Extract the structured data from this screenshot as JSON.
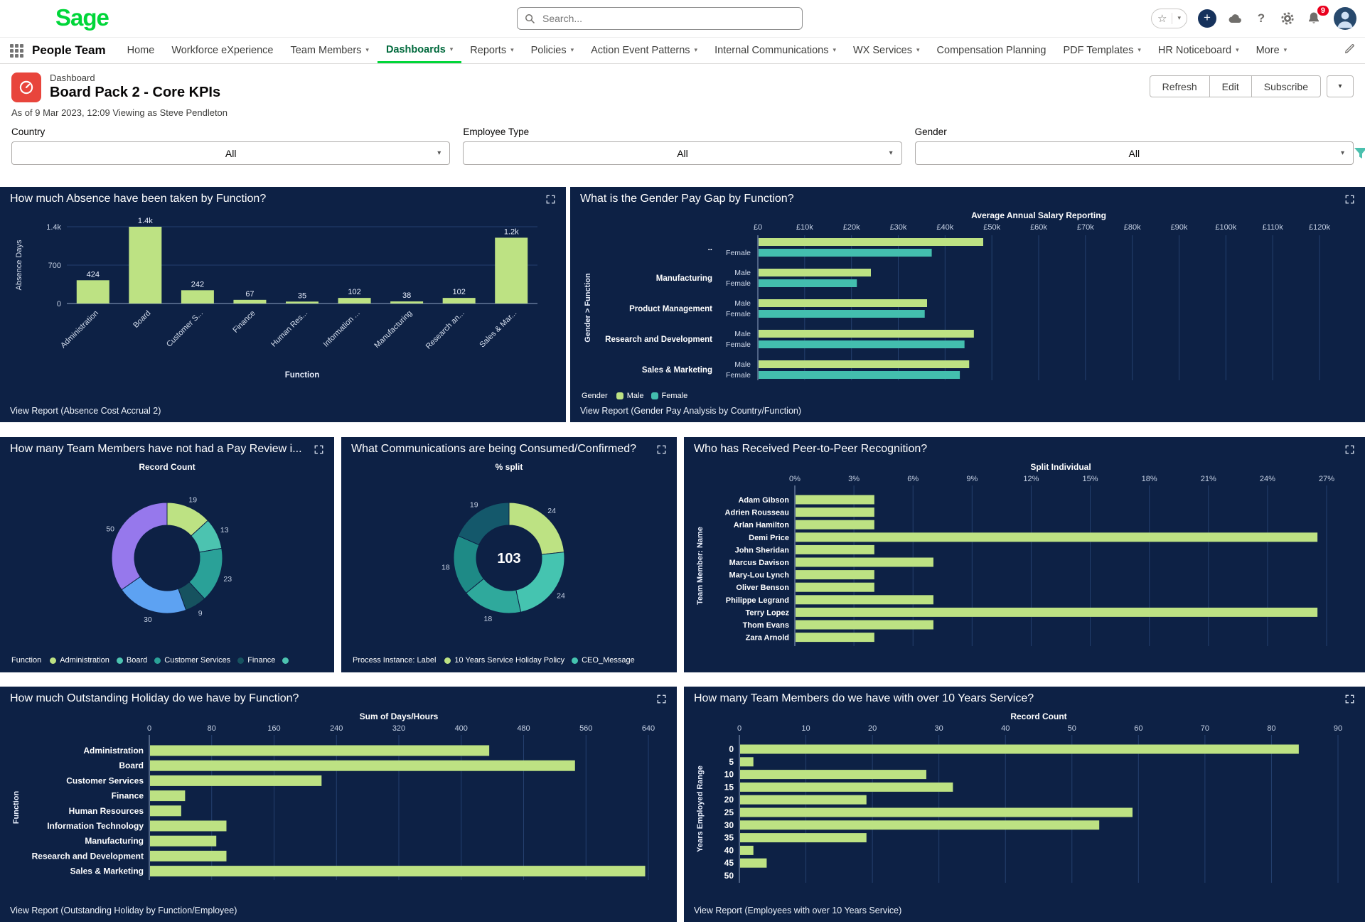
{
  "brand": {
    "green": "#00d639",
    "card_bg": "#0d2145",
    "bar_green": "#bde283",
    "teal": "#43beae"
  },
  "header": {
    "logo_text": "Sage",
    "search_placeholder": "Search...",
    "notification_count": "9"
  },
  "nav": {
    "app_name": "People Team",
    "items": [
      {
        "label": "Home",
        "chevron": false,
        "active": false
      },
      {
        "label": "Workforce eXperience",
        "chevron": false,
        "active": false
      },
      {
        "label": "Team Members",
        "chevron": true,
        "active": false
      },
      {
        "label": "Dashboards",
        "chevron": true,
        "active": true
      },
      {
        "label": "Reports",
        "chevron": true,
        "active": false
      },
      {
        "label": "Policies",
        "chevron": true,
        "active": false
      },
      {
        "label": "Action Event Patterns",
        "chevron": true,
        "active": false
      },
      {
        "label": "Internal Communications",
        "chevron": true,
        "active": false
      },
      {
        "label": "WX Services",
        "chevron": true,
        "active": false
      },
      {
        "label": "Compensation Planning",
        "chevron": false,
        "active": false
      },
      {
        "label": "PDF Templates",
        "chevron": true,
        "active": false
      },
      {
        "label": "HR Noticeboard",
        "chevron": true,
        "active": false
      },
      {
        "label": "More",
        "chevron": true,
        "active": false
      }
    ]
  },
  "page_header": {
    "record_type": "Dashboard",
    "title": "Board Pack 2 - Core KPIs",
    "as_of": "As of 9 Mar 2023, 12:09 Viewing as Steve Pendleton",
    "buttons": {
      "refresh": "Refresh",
      "edit": "Edit",
      "subscribe": "Subscribe"
    }
  },
  "filters": [
    {
      "label": "Country",
      "value": "All"
    },
    {
      "label": "Employee Type",
      "value": "All"
    },
    {
      "label": "Gender",
      "value": "All"
    }
  ],
  "cards": [
    {
      "title": "How much Absence have been taken by Function?",
      "view_report": "View Report (Absence Cost Accrual 2)"
    },
    {
      "title": "What is the Gender Pay Gap by Function?",
      "view_report": "View Report (Gender Pay Analysis by Country/Function)"
    },
    {
      "title": "How many Team Members have not had a Pay Review i..."
    },
    {
      "title": "What Communications are being Consumed/Confirmed?"
    },
    {
      "title": "Who has Received Peer-to-Peer Recognition?"
    },
    {
      "title": "How much Outstanding Holiday do we have by Function?",
      "view_report": "View Report (Outstanding Holiday by Function/Employee)"
    },
    {
      "title": "How many Team Members do we have with over 10 Years Service?",
      "view_report": "View Report (Employees with over 10 Years Service)"
    }
  ],
  "chart_data": [
    {
      "id": "absence",
      "type": "bar",
      "categories": [
        "Administration",
        "Board",
        "Customer S...",
        "Finance",
        "Human Res...",
        "Information ...",
        "Manufacturing",
        "Research an...",
        "Sales & Mar..."
      ],
      "values": [
        424,
        1400,
        242,
        67,
        35,
        102,
        38,
        102,
        1200
      ],
      "value_labels": [
        "424",
        "1.4k",
        "242",
        "67",
        "35",
        "102",
        "38",
        "102",
        "1.2k"
      ],
      "ylabel": "Absence Days",
      "xlabel": "Function",
      "ylim": [
        0,
        1400
      ],
      "yticks": [
        {
          "v": 0,
          "label": "0"
        },
        {
          "v": 700,
          "label": "700"
        },
        {
          "v": 1400,
          "label": "1.4k"
        }
      ]
    },
    {
      "id": "paygap",
      "type": "grouped_hbar",
      "title": "Average Annual Salary Reporting",
      "ylabel": "Gender > Function",
      "xlim": [
        0,
        120000
      ],
      "xticks": [
        {
          "v": 0,
          "label": "£0"
        },
        {
          "v": 10000,
          "label": "£10k"
        },
        {
          "v": 20000,
          "label": "£20k"
        },
        {
          "v": 30000,
          "label": "£30k"
        },
        {
          "v": 40000,
          "label": "£40k"
        },
        {
          "v": 50000,
          "label": "£50k"
        },
        {
          "v": 60000,
          "label": "£60k"
        },
        {
          "v": 70000,
          "label": "£70k"
        },
        {
          "v": 80000,
          "label": "£80k"
        },
        {
          "v": 90000,
          "label": "£90k"
        },
        {
          "v": 100000,
          "label": "£100k"
        },
        {
          "v": 110000,
          "label": "£110k"
        },
        {
          "v": 120000,
          "label": "£120k"
        }
      ],
      "series_colors": {
        "Male": "#bde283",
        "Female": "#43beae"
      },
      "groups": [
        {
          "label": "..",
          "rows": [
            {
              "label": "",
              "series": "Male",
              "value": 48000
            },
            {
              "label": "Female",
              "series": "Female",
              "value": 37000
            }
          ]
        },
        {
          "label": "Manufacturing",
          "rows": [
            {
              "label": "Male",
              "series": "Male",
              "value": 24000
            },
            {
              "label": "Female",
              "series": "Female",
              "value": 21000
            }
          ]
        },
        {
          "label": "Product Management",
          "rows": [
            {
              "label": "Male",
              "series": "Male",
              "value": 36000
            },
            {
              "label": "Female",
              "series": "Female",
              "value": 35500
            }
          ]
        },
        {
          "label": "Research and Development",
          "rows": [
            {
              "label": "Male",
              "series": "Male",
              "value": 46000
            },
            {
              "label": "Female",
              "series": "Female",
              "value": 44000
            }
          ]
        },
        {
          "label": "Sales & Marketing",
          "rows": [
            {
              "label": "Male",
              "series": "Male",
              "value": 45000
            },
            {
              "label": "Female",
              "series": "Female",
              "value": 43000
            }
          ]
        }
      ],
      "legend": {
        "title": "Gender",
        "items": [
          {
            "label": "Male",
            "color": "#bde283"
          },
          {
            "label": "Female",
            "color": "#43beae"
          }
        ]
      }
    },
    {
      "id": "payreview",
      "type": "donut",
      "title": "Record Count",
      "center_text": "",
      "segments": [
        {
          "label": "19",
          "value": 19,
          "color": "#bde283"
        },
        {
          "label": "13",
          "value": 13,
          "color": "#4cc3b0"
        },
        {
          "label": "23",
          "value": 23,
          "color": "#2aa198"
        },
        {
          "label": "9",
          "value": 9,
          "color": "#16525f"
        },
        {
          "label": "30",
          "value": 30,
          "color": "#5da2f2"
        },
        {
          "label": "50",
          "value": 50,
          "color": "#9678ec"
        }
      ],
      "legend": {
        "title": "Function",
        "items": [
          {
            "label": "Administration",
            "color": "#bde283"
          },
          {
            "label": "Board",
            "color": "#4cc3b0"
          },
          {
            "label": "Customer Services",
            "color": "#2aa198"
          },
          {
            "label": "Finance",
            "color": "#16525f"
          },
          {
            "label": "",
            "color": "#4cc3b0"
          }
        ]
      }
    },
    {
      "id": "comms",
      "type": "donut",
      "title": "% split",
      "center_text": "103",
      "segments": [
        {
          "label": "24",
          "value": 24,
          "color": "#bde283"
        },
        {
          "label": "24",
          "value": 24,
          "color": "#45c4b0"
        },
        {
          "label": "18",
          "value": 18,
          "color": "#2fa99c"
        },
        {
          "label": "18",
          "value": 18,
          "color": "#1e8a86"
        },
        {
          "label": "19",
          "value": 19,
          "color": "#14586b"
        }
      ],
      "legend": {
        "title": "Process Instance: Label",
        "items": [
          {
            "label": "10 Years Service Holiday Policy",
            "color": "#bde283"
          },
          {
            "label": "CEO_Message",
            "color": "#45c4b0"
          }
        ]
      }
    },
    {
      "id": "recognition",
      "type": "hbar",
      "title": "Split Individual",
      "ylabel": "Team Member: Name",
      "categories": [
        "Adam Gibson",
        "Adrien Rousseau",
        "Arlan Hamilton",
        "Demi Price",
        "John Sheridan",
        "Marcus Davison",
        "Mary-Lou Lynch",
        "Oliver Benson",
        "Philippe Legrand",
        "Terry Lopez",
        "Thom Evans",
        "Zara Arnold"
      ],
      "values": [
        4,
        4,
        4,
        26.5,
        4,
        7,
        4,
        4,
        7,
        26.5,
        7,
        4
      ],
      "xmax": 27,
      "xticks": [
        {
          "v": 0,
          "label": "0%"
        },
        {
          "v": 3,
          "label": "3%"
        },
        {
          "v": 6,
          "label": "6%"
        },
        {
          "v": 9,
          "label": "9%"
        },
        {
          "v": 12,
          "label": "12%"
        },
        {
          "v": 15,
          "label": "15%"
        },
        {
          "v": 18,
          "label": "18%"
        },
        {
          "v": 21,
          "label": "21%"
        },
        {
          "v": 24,
          "label": "24%"
        },
        {
          "v": 27,
          "label": "27%"
        }
      ]
    },
    {
      "id": "holiday",
      "type": "hbar",
      "title": "Sum of Days/Hours",
      "ylabel": "Function",
      "categories": [
        "Administration",
        "Board",
        "Customer Services",
        "Finance",
        "Human Resources",
        "Information Technology",
        "Manufacturing",
        "Research and Development",
        "Sales & Marketing"
      ],
      "values": [
        435,
        545,
        220,
        45,
        40,
        98,
        85,
        98,
        635
      ],
      "xmax": 640,
      "xticks": [
        {
          "v": 0,
          "label": "0"
        },
        {
          "v": 80,
          "label": "80"
        },
        {
          "v": 160,
          "label": "160"
        },
        {
          "v": 240,
          "label": "240"
        },
        {
          "v": 320,
          "label": "320"
        },
        {
          "v": 400,
          "label": "400"
        },
        {
          "v": 480,
          "label": "480"
        },
        {
          "v": 560,
          "label": "560"
        },
        {
          "v": 640,
          "label": "640"
        }
      ]
    },
    {
      "id": "service",
      "type": "hbar",
      "title": "Record Count",
      "ylabel": "Years Employed Range",
      "categories": [
        "0",
        "5",
        "10",
        "15",
        "20",
        "25",
        "30",
        "35",
        "40",
        "45",
        "50"
      ],
      "values": [
        84,
        2,
        28,
        32,
        19,
        59,
        54,
        19,
        2,
        4,
        0
      ],
      "xmax": 90,
      "xticks": [
        {
          "v": 0,
          "label": "0"
        },
        {
          "v": 10,
          "label": "10"
        },
        {
          "v": 20,
          "label": "20"
        },
        {
          "v": 30,
          "label": "30"
        },
        {
          "v": 40,
          "label": "40"
        },
        {
          "v": 50,
          "label": "50"
        },
        {
          "v": 60,
          "label": "60"
        },
        {
          "v": 70,
          "label": "70"
        },
        {
          "v": 80,
          "label": "80"
        },
        {
          "v": 90,
          "label": "90"
        }
      ]
    }
  ]
}
